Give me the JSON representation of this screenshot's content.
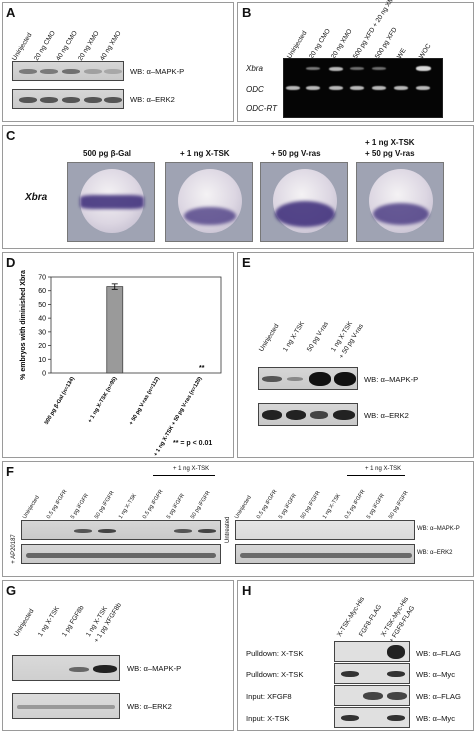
{
  "panels": {
    "A": {
      "letter": "A",
      "lanes": [
        "Uninjected",
        "20 ng CMO",
        "40 ng CMO",
        "20 ng XMO",
        "40 ng XMO"
      ],
      "wb1": "WB: α–MAPK-P",
      "wb2": "WB: α–ERK2"
    },
    "B": {
      "letter": "B",
      "lanes": [
        "Uninjected",
        "20 ng CMO",
        "20 ng XMO",
        "500 pg XFD + 20 ng XMO",
        "500 pg XFD",
        "WE",
        "WOC"
      ],
      "rows": [
        "Xbra",
        "ODC",
        "ODC-RT"
      ]
    },
    "C": {
      "letter": "C",
      "row_label": "Xbra",
      "titles": [
        "500 pg β-Gal",
        "+ 1 ng X-TSK",
        "+ 50 pg V-ras",
        "+ 1 ng X-TSK",
        "+ 50 pg V-ras"
      ]
    },
    "D": {
      "letter": "D",
      "note": "** = p < 0.01",
      "marker": "**"
    },
    "E": {
      "letter": "E",
      "lanes": [
        "Uninjected",
        "1 ng X-TSK",
        "50 pg V-ras",
        "1 ng X-TSK",
        "+ 50 pg V-ras"
      ],
      "wb1": "WB: α–MAPK-P",
      "wb2": "WB: α–ERK2"
    },
    "F": {
      "letter": "F",
      "left_lanes": [
        "Uninjected",
        "0.5 pg iFGFR",
        "5 pg iFGFR",
        "50 pg iFGFR",
        "1 ng X-TSK",
        "0.5 pg iFGFR",
        "5 pg iFGFR",
        "50 pg iFGFR"
      ],
      "right_lanes": [
        "Uninjected",
        "0.5 pg iFGFR",
        "5 pg iFGFR",
        "50 pg iFGFR",
        "1 ng X-TSK",
        "0.5 pg iFGFR",
        "5 pg iFGFR",
        "50 pg iFGFR"
      ],
      "group_label": "+ 1 ng X-TSK",
      "left_side": "+ AP20187",
      "right_side": "Untreated",
      "wb1": "WB: α–MAPK-P",
      "wb2": "WB: α–ERK2"
    },
    "G": {
      "letter": "G",
      "lanes": [
        "Uninjected",
        "1 ng X-TSK",
        "1 pg FGF8b",
        "1 ng X-TSK",
        "+ 1 pg XFGF8b"
      ],
      "wb1": "WB: α–MAPK-P",
      "wb2": "WB: α–ERK2"
    },
    "H": {
      "letter": "H",
      "lanes": [
        "X-TSK-Myc-His",
        "FGF8-FLAG",
        "X-TSK-Myc-His",
        "+ FGF8-FLAG"
      ],
      "rows": [
        {
          "left": "Pulldown: X-TSK",
          "right": "WB: α–FLAG"
        },
        {
          "left": "Pulldown: X-TSK",
          "right": "WB: α–Myc"
        },
        {
          "left": "Input: XFGF8",
          "right": "WB: α–FLAG"
        },
        {
          "left": "Input: X-TSK",
          "right": "WB: α–Myc"
        }
      ]
    }
  },
  "chart_data": {
    "type": "bar",
    "categories": [
      "500 pg β-Gal (n=134)",
      "+ 1 ng X-TSK (n=95)",
      "+ 50 pg V-ras (n=112)",
      "+ 1 ng X-TSK + 50 pg V-ras (n=120)"
    ],
    "values": [
      0,
      63,
      0,
      0
    ],
    "error": [
      0,
      2,
      0,
      0
    ],
    "ylabel": "% embryos with diminished Xbra",
    "yticks": [
      0,
      10,
      20,
      30,
      40,
      50,
      60,
      70
    ],
    "ylim": [
      0,
      70
    ],
    "grid": false
  }
}
